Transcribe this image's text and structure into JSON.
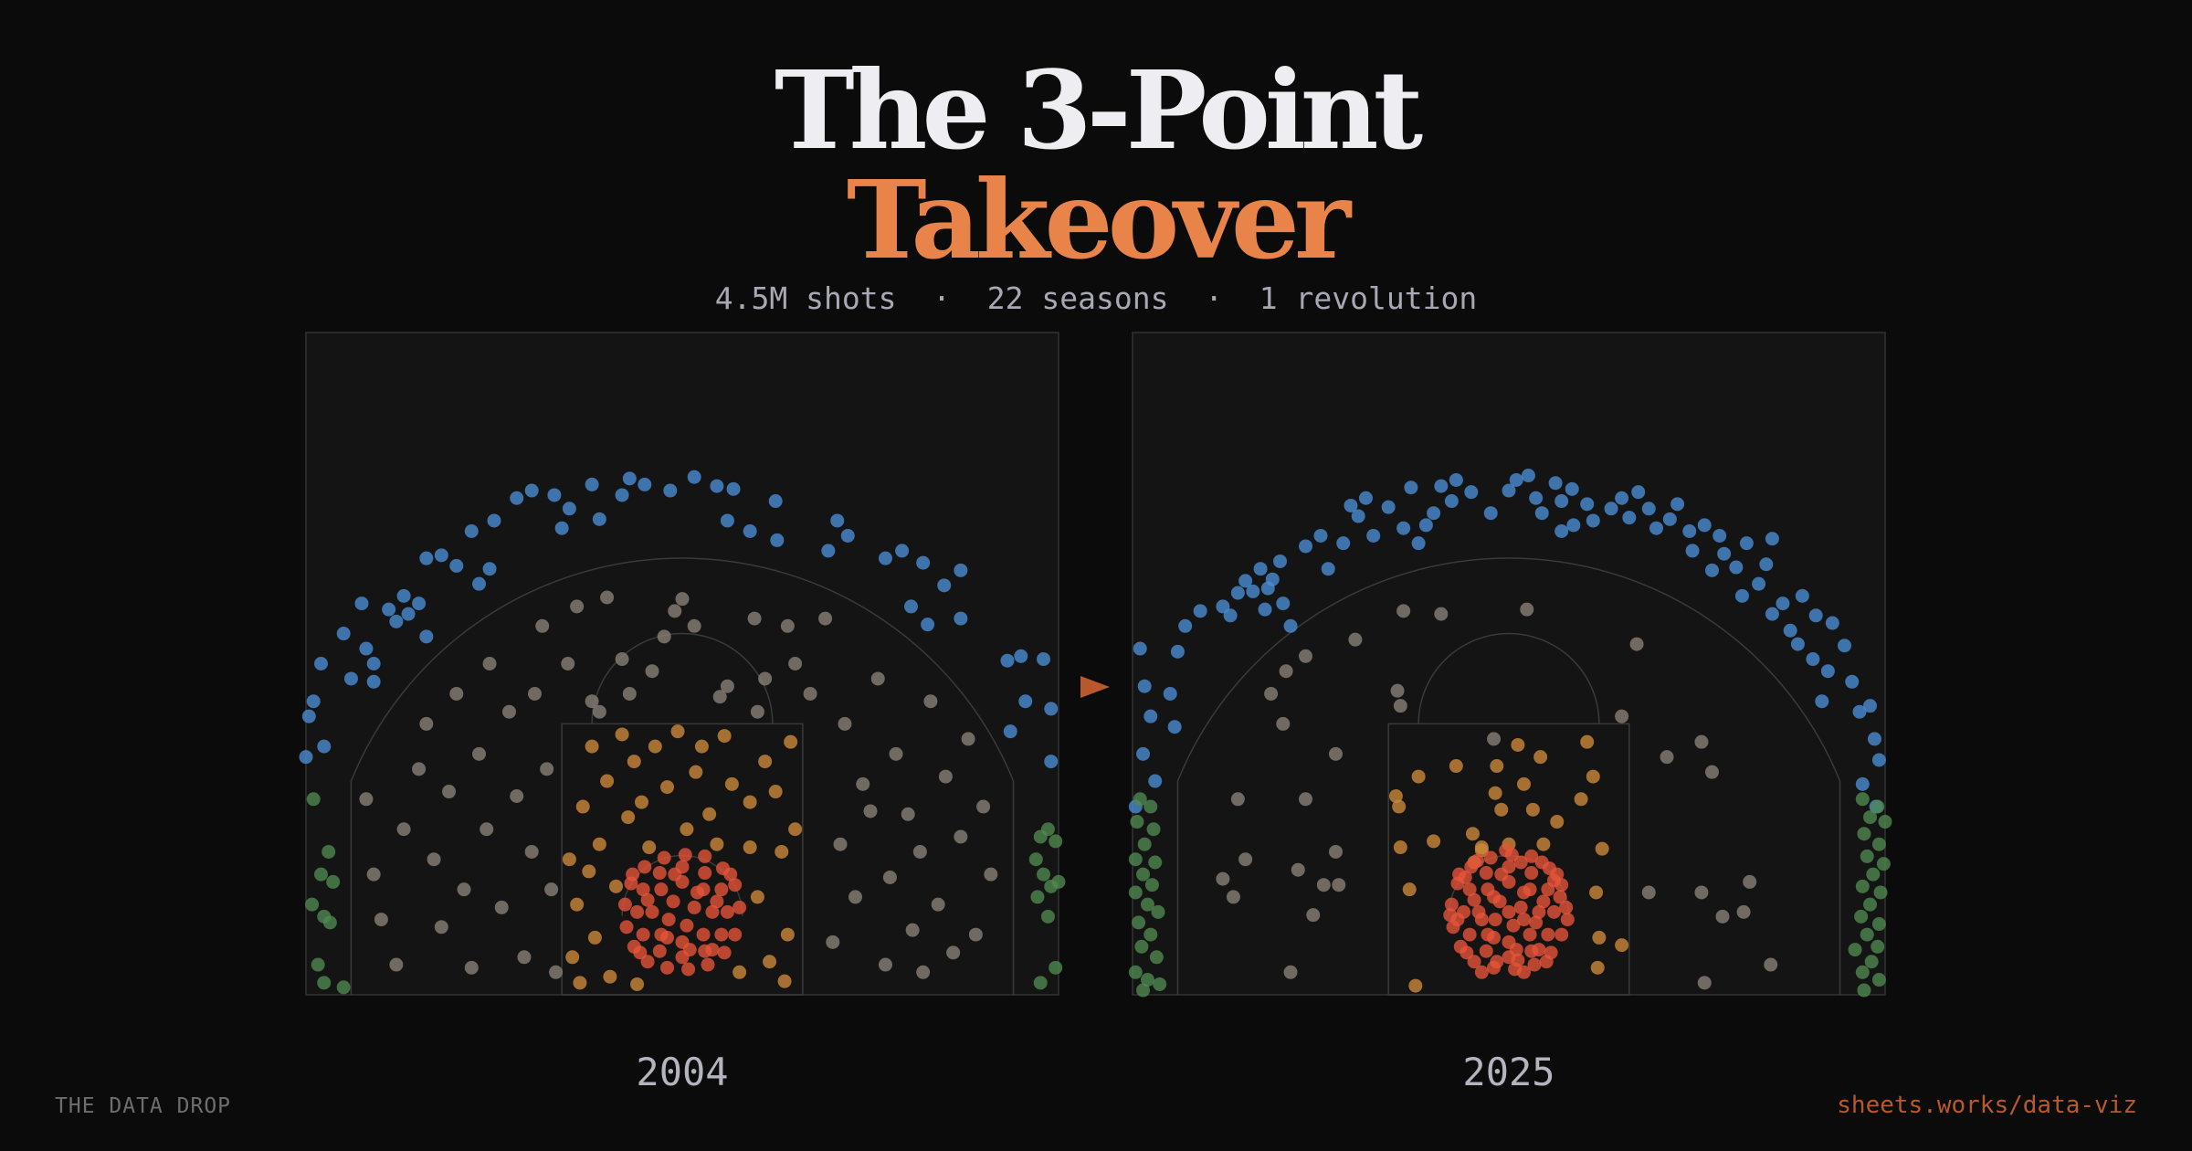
{
  "title": "The 3-Point",
  "title_accent": "Takeover",
  "subtitle": "4.5M shots  ·  22 seasons  ·  1 revolution",
  "brand": "THE DATA DROP",
  "link": "sheets.works/data-viz",
  "chart_data": [
    {
      "type": "scatter",
      "title": "2004",
      "xlim": [
        -25,
        25
      ],
      "ylim": [
        0,
        44
      ],
      "series": [
        {
          "color": "#4a8fd6",
          "x": [
            -24.5,
            -23.8,
            -24,
            -22.5,
            -21,
            -20.5,
            -19,
            -18.5,
            -17,
            -16,
            -15,
            -14,
            -12.8,
            -12.5,
            -11,
            -10,
            -8.5,
            -7.5,
            -6,
            -4,
            -2.5,
            -0.8,
            0.8,
            2.3,
            3.4,
            6.2,
            6.3,
            10.3,
            11,
            9.7,
            13.5,
            14.6,
            16,
            17.4,
            18.5,
            15.2,
            18.5,
            16.3,
            21.6,
            22.5,
            24,
            22.8,
            24.5,
            21.8,
            24.5,
            -22,
            -25,
            -21.3,
            -19.5,
            -18.2,
            -17,
            -17.5,
            -24.8,
            -20.5,
            -13.5,
            -8,
            3,
            -5.5,
            -3.5,
            4.5
          ],
          "y": [
            19.5,
            16.5,
            22,
            24,
            23,
            20.8,
            24.8,
            26.5,
            29,
            29.2,
            28.5,
            30.8,
            28.3,
            31.5,
            33,
            33.5,
            33.2,
            32.3,
            33.9,
            33.2,
            33.9,
            33.5,
            34.4,
            33.8,
            33.6,
            32.8,
            30.2,
            31.5,
            30.5,
            29.5,
            29,
            29.5,
            28.7,
            27.2,
            28.2,
            25.8,
            25,
            24.6,
            22.2,
            22.5,
            22.3,
            19.5,
            19,
            17.5,
            15.5,
            21,
            15.8,
            26,
            25.6,
            25.3,
            23.8,
            26,
            18.5,
            22,
            27.3,
            31,
            31.5,
            31.6,
            34.3,
            30.8
          ]
        },
        {
          "color": "#8a8378",
          "x": [
            -21,
            -20.5,
            -20,
            -19,
            -18.5,
            -17.5,
            -17,
            -16.5,
            -16,
            -15.5,
            -15,
            -14.5,
            -14,
            -13.5,
            -13,
            -12.8,
            -12,
            -11.5,
            -11,
            -10.5,
            -10,
            -9.8,
            -9.3,
            -9,
            -8.7,
            -8.4,
            -7.6,
            -7,
            -6,
            -5,
            -4,
            -3.5,
            -1.2,
            -0.5,
            0,
            0.8,
            2.5,
            3,
            4.8,
            5.5,
            7,
            7.5,
            8.5,
            9.5,
            10,
            10.5,
            10.8,
            11.5,
            12,
            13,
            13.5,
            13.8,
            14.2,
            15,
            15.3,
            15.8,
            16.5,
            17,
            17.5,
            18,
            18.5,
            19,
            19.5,
            20,
            20.5,
            16,
            12.5,
            -5.5,
            5,
            -2
          ],
          "y": [
            13,
            8,
            5,
            2,
            11,
            15,
            18,
            9,
            4.5,
            13.5,
            20,
            7,
            1.8,
            16,
            11,
            22,
            5.8,
            18.8,
            13.2,
            2.5,
            9.5,
            20,
            24.5,
            15,
            7,
            1.5,
            22,
            25.8,
            19.5,
            26.4,
            22.3,
            20,
            23.8,
            25.5,
            26.3,
            24.5,
            19.8,
            20.5,
            25,
            21,
            24.5,
            22,
            20,
            25,
            3.5,
            10,
            18,
            6.5,
            14,
            21,
            2,
            7.8,
            16,
            12,
            4.3,
            9.5,
            19.5,
            6,
            14.5,
            2.8,
            10.5,
            17,
            4,
            12.5,
            8,
            1.5,
            12.2,
            18.8,
            18.8,
            21.5
          ]
        },
        {
          "color": "#d08a3c",
          "x": [
            -7.5,
            -7.3,
            -7,
            -6.6,
            -6,
            -5.8,
            -5.5,
            -5,
            -4.8,
            -4.4,
            -4,
            -3.6,
            -3.2,
            -2.7,
            -2.2,
            -1.8,
            -1,
            -0.3,
            0.3,
            0.9,
            1.3,
            1.8,
            2.3,
            2.8,
            3.3,
            3.8,
            4.5,
            5,
            5.5,
            5.8,
            6.2,
            6.6,
            7,
            7.2,
            7.5,
            -6.8,
            6.8,
            -3,
            4.5,
            -6.2
          ],
          "y": [
            9,
            2.5,
            6,
            12.5,
            16.5,
            3.8,
            10,
            14.2,
            1.2,
            7.2,
            17.3,
            11.8,
            15.5,
            12.8,
            9.8,
            16.5,
            13.8,
            17.5,
            11,
            14.8,
            16.5,
            12,
            10,
            17.2,
            14,
            1.5,
            12.8,
            6.5,
            15.5,
            2.2,
            13.5,
            9.5,
            4,
            16.8,
            11,
            0.8,
            0.9,
            0.7,
            9.8,
            8.2
          ]
        },
        {
          "color": "#e8553a",
          "x": [
            0.8,
            -0.6,
            0.3,
            -0.9,
            2,
            1.4,
            0,
            -1.4,
            -2,
            -1.4,
            0,
            1.4,
            3,
            2.6,
            1.5,
            0,
            -1.5,
            -2.6,
            -3,
            -2.6,
            -1.5,
            0,
            1.5,
            2.6,
            3.8,
            3.5,
            2.7,
            1.5,
            0.2,
            -1.2,
            -2.5,
            -3.4,
            -3.8,
            -3.7,
            -3.2,
            -2.3,
            -1,
            0.4,
            1.7,
            2.8,
            3.5,
            0.5,
            -0.5,
            2.3,
            -2.3,
            1,
            -1,
            2,
            -2.8,
            3.2,
            -3.3
          ],
          "y": [
            5.8,
            6.2,
            4.6,
            5,
            5.5,
            7,
            7.5,
            7,
            5.5,
            4,
            3.5,
            4,
            5.5,
            7,
            8.1,
            8.5,
            8.1,
            7,
            5.5,
            4,
            2.9,
            2.5,
            2.9,
            4,
            5.8,
            7.3,
            8.4,
            9.2,
            9.3,
            9.1,
            8.5,
            7.4,
            6,
            4.5,
            3.2,
            2.2,
            1.8,
            1.7,
            2,
            2.8,
            4,
            3,
            8,
            6.2,
            6.3,
            6.8,
            3.8,
            3,
            2.8,
            8,
            8
          ]
        },
        {
          "color": "#4f8a4f",
          "x": [
            -24.5,
            -23.5,
            -24,
            -23.2,
            -24.6,
            -23.8,
            -23.4,
            -24.2,
            -23.8,
            -22.5,
            23.8,
            24.3,
            24.8,
            23.5,
            24,
            25,
            24.5,
            23.6,
            24.3,
            24.8,
            23.8
          ],
          "y": [
            13,
            9.5,
            8,
            7.5,
            6,
            5.2,
            4.8,
            2,
            0.8,
            0.5,
            10.5,
            11,
            10.2,
            9,
            8,
            7.5,
            7.2,
            6.5,
            5.2,
            1.8,
            0.8
          ]
        }
      ]
    },
    {
      "type": "scatter",
      "title": "2025",
      "xlim": [
        -25,
        25
      ],
      "ylim": [
        0,
        44
      ],
      "series": [
        {
          "color": "#4a8fd6",
          "x": [
            -24.5,
            -24.2,
            -23.8,
            -24.3,
            -23.5,
            -24.8,
            -22.5,
            -22,
            -21.5,
            -22.2,
            -20.5,
            -19,
            -18,
            -17.5,
            -18.5,
            -17,
            -16.5,
            -16,
            -15.7,
            -15.2,
            -16.2,
            -15,
            -12.5,
            -12,
            -11,
            -10.5,
            -10,
            -9,
            -9.5,
            -8,
            -7,
            -6.5,
            -5.5,
            -6,
            -5,
            -4.5,
            -3.5,
            -3.8,
            -2.5,
            -1.2,
            0,
            0.5,
            1.3,
            1.8,
            2.2,
            3.1,
            3.5,
            4.2,
            4.3,
            3.5,
            5.2,
            5.6,
            6.8,
            7.5,
            8,
            8.6,
            9.3,
            9.8,
            10.7,
            11.2,
            12,
            12.2,
            13,
            13.5,
            14,
            14.3,
            15.1,
            15.5,
            16.6,
            17.1,
            17.5,
            18.2,
            18.7,
            19.2,
            19.5,
            20.4,
            20.2,
            21.2,
            21.5,
            22.3,
            22.8,
            23.3,
            24,
            24.3,
            24.6,
            23.5,
            24.4,
            20.8,
            15.8,
            17.5,
            -13.5,
            -14.5
          ],
          "y": [
            23,
            20.5,
            18.5,
            16,
            14.2,
            12.5,
            20,
            22.8,
            24.5,
            17.8,
            25.5,
            25.8,
            26.7,
            27.5,
            25.2,
            26.8,
            28.3,
            27,
            27.6,
            28.8,
            25.6,
            26,
            30.5,
            28.3,
            30,
            32.5,
            31.8,
            30.5,
            33,
            32.4,
            31,
            33.7,
            31.2,
            30,
            32,
            33.8,
            34.2,
            32.8,
            33.4,
            32,
            33.5,
            34.2,
            34.5,
            33,
            32,
            34,
            32.8,
            33.6,
            31.2,
            30.8,
            32.6,
            31.5,
            32.3,
            33,
            31.7,
            33.4,
            32.3,
            31,
            31.6,
            32.6,
            30.8,
            29.5,
            31.2,
            28.2,
            30.5,
            29.3,
            28.4,
            26.5,
            27.3,
            28.6,
            25.3,
            26,
            24.2,
            23.3,
            26.5,
            25.2,
            22.3,
            21.5,
            24.7,
            23.2,
            20.8,
            18.8,
            19.2,
            17,
            15.6,
            14,
            12.5,
            19.5,
            30,
            30.3,
            29.8,
            24.5
          ]
        },
        {
          "color": "#8a8378",
          "x": [
            -18,
            -17.5,
            -19,
            -18.3,
            -15.8,
            -15,
            -13.5,
            -14,
            -13,
            -11.5,
            -12.3,
            -11.3,
            -13.5,
            -11.5,
            -14.8,
            -10.2,
            -7,
            -4.5,
            -7.4,
            -7.2,
            1.2,
            8.5,
            7.5,
            12.8,
            10.5,
            13.5,
            9.3,
            12.8,
            14.2,
            16,
            15.6,
            17.4,
            13,
            -14.5,
            -1
          ],
          "y": [
            13,
            9,
            7.7,
            6.5,
            20,
            18,
            22.5,
            8.3,
            5.3,
            9.5,
            7.3,
            7.3,
            13,
            16,
            21.5,
            23.6,
            25.5,
            25.3,
            20.2,
            19.2,
            25.6,
            23.3,
            18.5,
            16.8,
            15.8,
            14.8,
            6.8,
            6.8,
            5.2,
            7.5,
            5.5,
            2,
            0.8,
            1.5,
            17
          ]
        },
        {
          "color": "#d08a3c",
          "x": [
            -7.5,
            -7.3,
            -7.2,
            -6,
            -6.6,
            -5,
            -3.5,
            -2.3,
            -2.4,
            -1.8,
            -0.9,
            -0.8,
            -0.5,
            0.6,
            1,
            1.6,
            2.1,
            2.3,
            3.2,
            4.8,
            5.2,
            5.6,
            5.8,
            6.2,
            7.5,
            6,
            5.9,
            -6.2,
            -1.8,
            0
          ],
          "y": [
            13.2,
            12.5,
            9.8,
            14.5,
            7,
            10.2,
            15.2,
            8.8,
            10.7,
            9.8,
            13.4,
            15.2,
            12.3,
            16.6,
            14,
            12.3,
            15.8,
            10,
            11.5,
            13,
            16.8,
            14.5,
            6.8,
            9.7,
            3.3,
            3.8,
            1.8,
            0.6,
            9.6,
            10
          ]
        },
        {
          "color": "#e8553a",
          "x": [
            0.8,
            -0.6,
            0.3,
            -0.9,
            2,
            1.4,
            0,
            -1.4,
            -2,
            -1.4,
            0,
            1.4,
            3,
            2.6,
            1.5,
            0,
            -1.5,
            -2.6,
            -3,
            -2.6,
            -1.5,
            0,
            1.5,
            2.6,
            3.8,
            3.5,
            2.7,
            1.5,
            0.2,
            -1.2,
            -2.5,
            -3.4,
            -3.8,
            -3.7,
            -3.2,
            -2.3,
            -1,
            0.4,
            1.7,
            2.8,
            3.5,
            0.5,
            -0.5,
            2.3,
            -2.3,
            1,
            -1,
            2,
            -2.8,
            3.2,
            -3.3,
            0,
            1,
            -1,
            3.4,
            -3.4,
            2.2,
            -2.1,
            1,
            -1.8,
            3.9,
            -3.9,
            0.8,
            -0.8,
            2.5,
            -2.9,
            3,
            1.8,
            -1.8,
            0.6,
            -0.2
          ],
          "y": [
            5.8,
            6.2,
            4.6,
            5,
            5.5,
            7,
            7.5,
            7,
            5.5,
            4,
            3.5,
            4,
            5.5,
            7,
            8.1,
            8.5,
            8.1,
            7,
            5.5,
            4,
            2.9,
            2.5,
            2.9,
            4,
            5.8,
            7.3,
            8.4,
            9.2,
            9.3,
            9.1,
            8.5,
            7.4,
            6,
            4.5,
            3.2,
            2.2,
            1.8,
            1.7,
            2,
            2.8,
            4,
            3,
            8,
            6.2,
            6.3,
            6.8,
            3.8,
            3,
            2.8,
            8,
            8,
            5.5,
            5,
            6.5,
            6.5,
            5,
            8.8,
            8.9,
            1.5,
            1.5,
            5,
            5.3,
            8.8,
            2.2,
            2.2,
            7.8,
            7.6,
            4.8,
            5,
            2.3,
            9.6
          ]
        },
        {
          "color": "#4f8a4f",
          "x": [
            -24.5,
            -23.8,
            -24.7,
            -23.6,
            -24.2,
            -24.8,
            -23.5,
            -24.3,
            -23.7,
            -24.8,
            -24,
            -23.3,
            -24.6,
            -23.8,
            -24.4,
            -23.4,
            -24.8,
            -24,
            -23.2,
            -24.3,
            23.5,
            24.5,
            24,
            25,
            23.6,
            24.6,
            23.8,
            24.9,
            24.2,
            23.5,
            24.7,
            24,
            23.4,
            24.6,
            23.8,
            24.5,
            23,
            24.1,
            23.5,
            24.6,
            23.6
          ],
          "y": [
            13,
            12.5,
            11.5,
            11,
            10,
            9,
            8.8,
            8,
            7.3,
            6.8,
            6,
            5.5,
            4.8,
            4,
            3.2,
            2.5,
            1.5,
            1,
            0.7,
            0.3,
            13,
            12.5,
            11.8,
            11.5,
            10.7,
            10,
            9.2,
            8.7,
            8,
            7.2,
            6.8,
            6,
            5.2,
            4.7,
            4,
            3.2,
            3,
            2.2,
            1.5,
            1,
            0.3
          ]
        }
      ]
    }
  ]
}
